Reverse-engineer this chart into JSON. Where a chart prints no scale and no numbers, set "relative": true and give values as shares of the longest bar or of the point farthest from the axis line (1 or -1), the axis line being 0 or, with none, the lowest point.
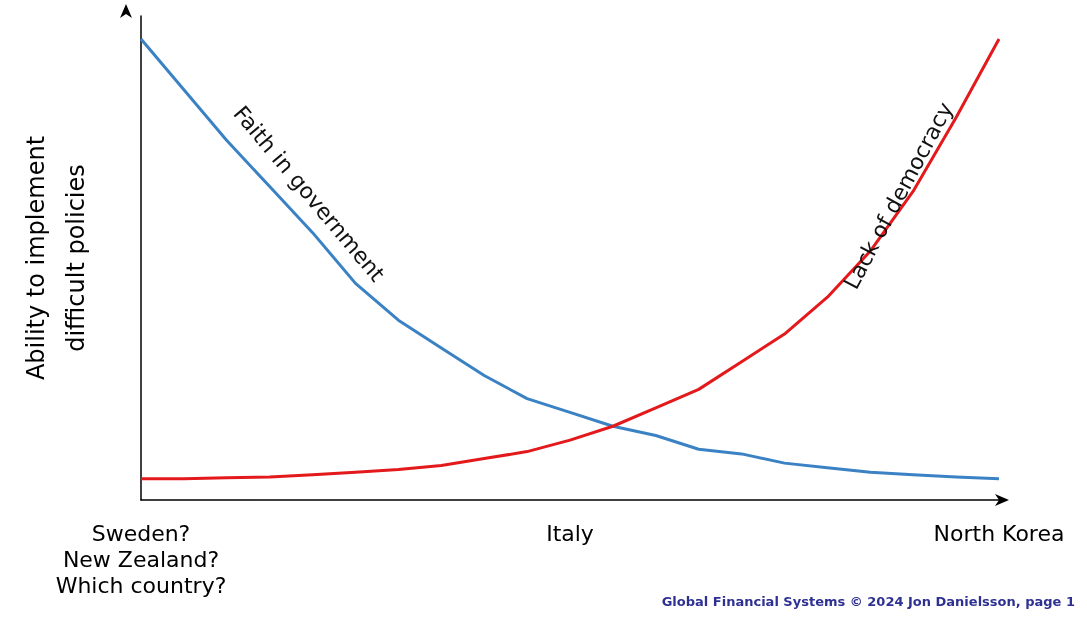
{
  "chart_data": {
    "type": "line",
    "relative": true,
    "ylabel": "Ability to implement\ndifficult policies",
    "categories": [
      "Sweden?\nNew Zealand?\nWhich country?",
      null,
      null,
      null,
      null,
      null,
      null,
      null,
      null,
      null,
      "Italy",
      null,
      null,
      null,
      null,
      null,
      null,
      null,
      null,
      null,
      "North Korea"
    ],
    "series": [
      {
        "name": "Faith in government",
        "color": "#3b82c4",
        "values": [
          1,
          0.89,
          0.78,
          0.68,
          0.58,
          0.47,
          0.39,
          0.33,
          0.27,
          0.22,
          0.19,
          0.16,
          0.14,
          0.11,
          0.1,
          0.08,
          0.07,
          0.06,
          0.055,
          0.05,
          0.046
        ]
      },
      {
        "name": "Lack of democracy",
        "color": "#e3191c",
        "values": [
          0.046,
          0.046,
          0.048,
          0.05,
          0.055,
          0.06,
          0.066,
          0.075,
          0.09,
          0.105,
          0.13,
          0.16,
          0.2,
          0.24,
          0.3,
          0.36,
          0.44,
          0.54,
          0.67,
          0.83,
          1
        ]
      }
    ],
    "annotations": [
      "Global Financial Systems © 2024 Jon Danielsson, page 1"
    ],
    "legend": false,
    "grid": false,
    "marker": "none",
    "line_style": "solid"
  }
}
